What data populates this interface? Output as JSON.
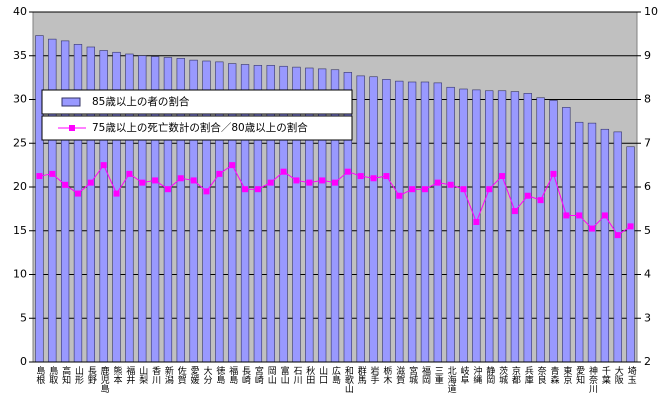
{
  "chart_data": {
    "type": "bar-line",
    "categories": [
      "島根",
      "鳥取",
      "高知",
      "山形",
      "長野",
      "鹿児島",
      "熊本",
      "福井",
      "山梨",
      "香川",
      "新潟",
      "佐賀",
      "愛媛",
      "大分",
      "徳島",
      "福島",
      "長崎",
      "宮崎",
      "岡山",
      "富山",
      "石川",
      "秋田",
      "山口",
      "広島",
      "和歌山",
      "群馬",
      "岩手",
      "栃木",
      "滋賀",
      "宮城",
      "福岡",
      "三重",
      "北海道",
      "岐阜",
      "沖縄",
      "静岡",
      "茨城",
      "京都",
      "兵庫",
      "奈良",
      "青森",
      "東京",
      "愛知",
      "神奈川",
      "千葉",
      "大阪",
      "埼玉"
    ],
    "series": [
      {
        "name": "85歳以上の者の割合",
        "type": "bar",
        "color": "#9999ff",
        "values": [
          37.3,
          36.9,
          36.7,
          36.3,
          36.0,
          35.6,
          35.4,
          35.2,
          35.0,
          34.9,
          34.8,
          34.7,
          34.5,
          34.4,
          34.3,
          34.1,
          34.0,
          33.9,
          33.9,
          33.8,
          33.7,
          33.6,
          33.5,
          33.4,
          33.1,
          32.7,
          32.6,
          32.3,
          32.1,
          32.0,
          32.0,
          31.9,
          31.4,
          31.2,
          31.1,
          31.0,
          31.0,
          30.9,
          30.7,
          30.2,
          29.9,
          29.1,
          27.4,
          27.3,
          26.6,
          26.3,
          24.6
        ]
      },
      {
        "name": "75歳以上の死亡数計の割合／80歳以上の割合",
        "type": "line",
        "axis": "y2",
        "color": "#ff00ff",
        "values": [
          6.25,
          6.3,
          6.05,
          5.85,
          6.1,
          6.5,
          5.85,
          6.3,
          6.1,
          6.15,
          5.95,
          6.2,
          6.15,
          5.9,
          6.3,
          6.5,
          5.95,
          5.95,
          6.1,
          6.35,
          6.15,
          6.1,
          6.15,
          6.1,
          6.35,
          6.25,
          6.2,
          6.25,
          5.8,
          5.95,
          5.95,
          6.1,
          6.05,
          5.95,
          5.2,
          5.95,
          6.25,
          5.45,
          5.8,
          5.7,
          6.3,
          5.35,
          5.35,
          5.05,
          5.35,
          4.9,
          5.1
        ]
      }
    ],
    "ylim": [
      0,
      40
    ],
    "yticks": [
      0,
      5,
      10,
      15,
      20,
      25,
      30,
      35,
      40
    ],
    "y2lim": [
      2,
      10
    ],
    "y2ticks": [
      2,
      3,
      4,
      5,
      6,
      7,
      8,
      9,
      10
    ],
    "grid": true,
    "legend": "upper left"
  }
}
